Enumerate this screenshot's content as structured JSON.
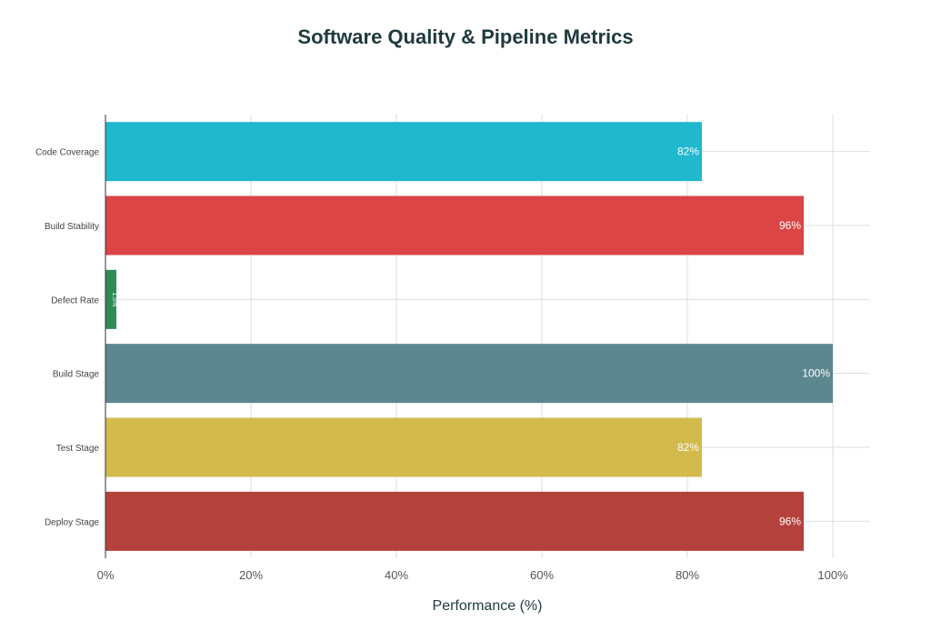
{
  "chart_data": {
    "type": "bar",
    "orientation": "horizontal",
    "title": "Software Quality & Pipeline Metrics",
    "xlabel": "Performance (%)",
    "ylabel": "",
    "xlim": [
      0,
      105
    ],
    "grid": true,
    "categories": [
      "Code Coverage",
      "Build Stability",
      "Defect Rate",
      "Build Stage",
      "Test Stage",
      "Deploy Stage"
    ],
    "values": [
      82,
      96,
      1.5,
      100,
      82,
      96
    ],
    "data_labels": [
      "82%",
      "96%",
      "1.5%",
      "100%",
      "82%",
      "96%"
    ],
    "colors": [
      "#1fb8cd",
      "#db4545",
      "#2e8b57",
      "#5d878f",
      "#d2ba4c",
      "#b4413c"
    ],
    "x_ticks": [
      0,
      20,
      40,
      60,
      80,
      100
    ],
    "x_tick_labels": [
      "0%",
      "20%",
      "40%",
      "60%",
      "80%",
      "100%"
    ]
  }
}
